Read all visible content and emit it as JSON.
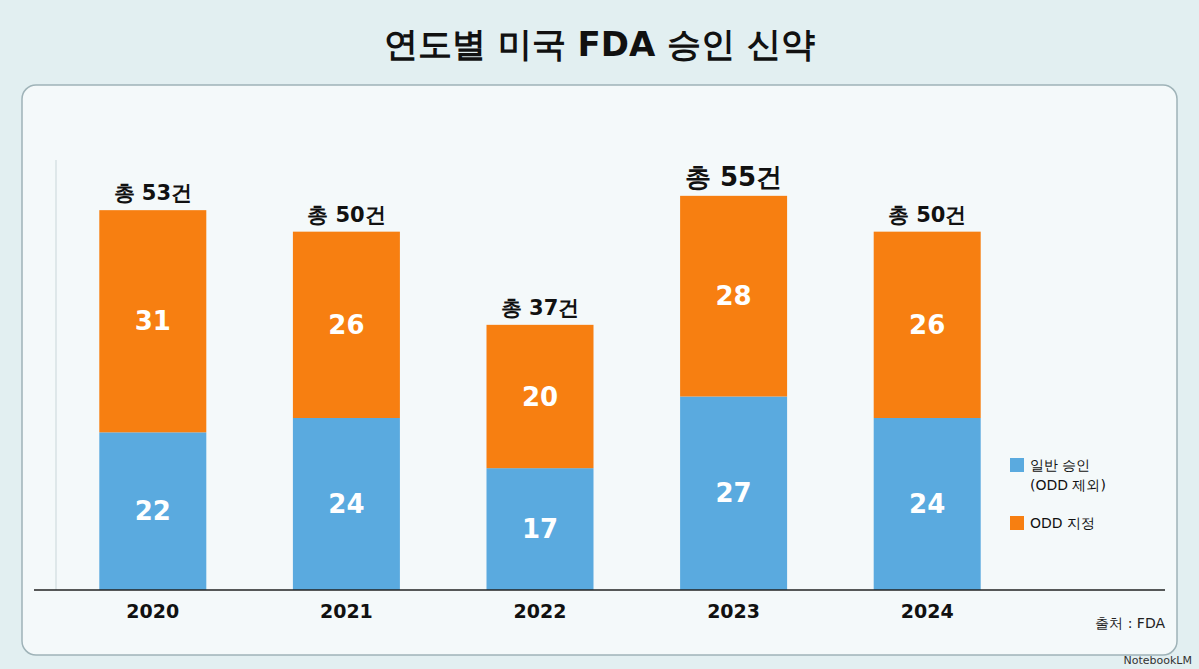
{
  "chart_data": {
    "type": "bar",
    "title": "연도별 미국 FDA 승인 신약",
    "categories": [
      "2020",
      "2021",
      "2022",
      "2023",
      "2024"
    ],
    "series": [
      {
        "name": "일반 승인 (ODD 제외)",
        "color": "#5aaadf",
        "values": [
          22,
          24,
          17,
          27,
          24
        ]
      },
      {
        "name": "ODD 지정",
        "color": "#f77f11",
        "values": [
          31,
          26,
          20,
          28,
          26
        ]
      }
    ],
    "total_labels": [
      "총 53건",
      "총 50건",
      "총 37건",
      "총 55건",
      "총 50건"
    ],
    "ylim": [
      0,
      60
    ],
    "yticks": [],
    "stacked": true,
    "data_labels": true,
    "tick_labels": "x",
    "legend": "right",
    "source": "출처 : FDA",
    "credit": "NotebookLM"
  }
}
